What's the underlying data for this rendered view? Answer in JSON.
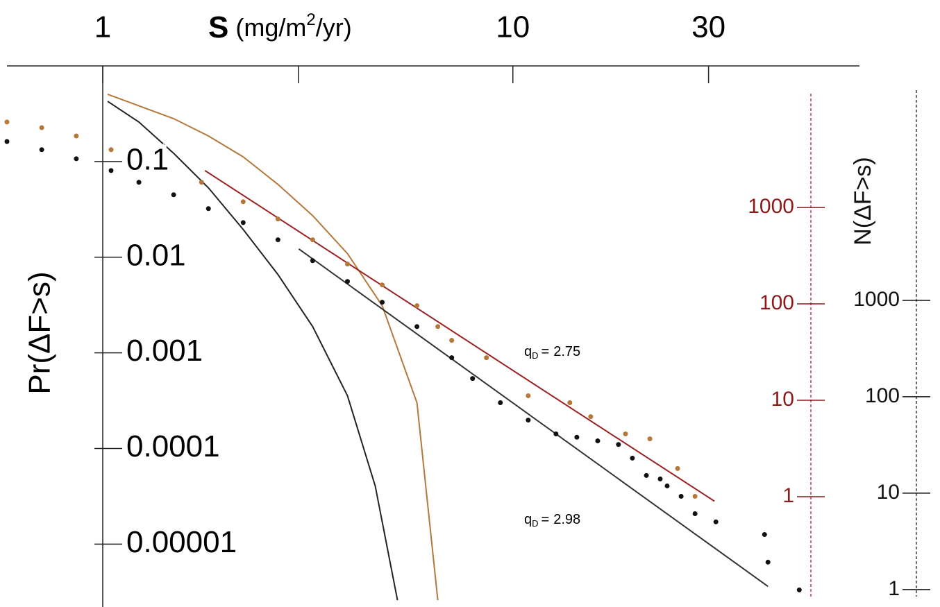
{
  "chart_data": {
    "type": "scatter",
    "x_label": {
      "symbol": "S",
      "unit_before": "(mg/m",
      "unit_sup": "2",
      "unit_after": "/yr)"
    },
    "y_label": "Pr(ΔF>s)",
    "x_axis_side": "top",
    "xlog": true,
    "ylog": true,
    "xlim": [
      0.584,
      70
    ],
    "ylim": [
      2.2e-06,
      1
    ],
    "xticks": [
      1,
      {
        "value": 3,
        "label": null
      },
      10,
      30
    ],
    "yticks": [
      0.1,
      0.01,
      0.001,
      0.0001,
      1e-05
    ],
    "series": [
      {
        "style": "dots",
        "color": "#111111",
        "x": [
          0.584,
          0.71,
          0.862,
          1.048,
          1.225,
          1.489,
          1.81,
          2.2,
          2.674,
          3.25,
          3.951,
          4.802,
          5.836,
          7.094,
          7.975,
          9.322,
          10.9,
          12.74,
          14.32,
          16.1,
          18.09,
          19.56,
          21.16,
          22.87,
          23.78,
          25.72,
          27.81,
          31.26,
          41.08,
          41.88,
          49.93
        ],
        "values": [
          0.162,
          0.133,
          0.107,
          0.0805,
          0.0607,
          0.0449,
          0.0322,
          0.023,
          0.0152,
          0.0092,
          0.00557,
          0.00338,
          0.00188,
          0.000889,
          0.000539,
          0.000301,
          0.000198,
          0.000142,
          0.000131,
          0.00012,
          0.00011,
          7.92e-05,
          5.22e-05,
          4.8e-05,
          4.06e-05,
          3.16e-05,
          2.08e-05,
          1.71e-05,
          1.26e-05,
          6.48e-06,
          3.32e-06
        ]
      },
      {
        "style": "dots",
        "color": "#b5773a",
        "x": [
          0.584,
          0.71,
          0.862,
          1.048,
          1.741,
          2.2,
          2.674,
          3.25,
          3.951,
          4.802,
          5.836,
          6.561,
          7.094,
          8.622,
          10.9,
          13.77,
          15.48,
          18.82,
          21.58,
          25.22,
          27.81
        ],
        "values": [
          0.259,
          0.226,
          0.185,
          0.133,
          0.0607,
          0.038,
          0.0251,
          0.0152,
          0.00847,
          0.00513,
          0.00311,
          0.00188,
          0.00135,
          0.000889,
          0.000356,
          0.000301,
          0.000215,
          0.000142,
          0.000126,
          6.17e-05,
          3.16e-05
        ]
      },
      {
        "style": "line",
        "color": "#222222",
        "x": [
          1.028,
          1.225,
          1.489,
          1.81,
          2.2,
          2.674,
          3.25,
          3.951,
          4.617,
          5.232
        ],
        "values": [
          0.426,
          0.259,
          0.122,
          0.0531,
          0.0195,
          0.00659,
          0.00188,
          0.000356,
          4.06e-05,
          2.59e-06
        ]
      },
      {
        "style": "line",
        "color": "#b5773a",
        "x": [
          1.028,
          1.489,
          1.81,
          2.2,
          2.674,
          3.25,
          3.951,
          4.802,
          5.836,
          6.561
        ],
        "values": [
          0.505,
          0.281,
          0.185,
          0.112,
          0.0577,
          0.0272,
          0.0109,
          0.00311,
          0.000301,
          2.59e-06
        ]
      },
      {
        "style": "line",
        "color": "#333333",
        "x": [
          3.006,
          41.88
        ],
        "values": [
          0.0122,
          3.61e-06
        ]
      },
      {
        "style": "line",
        "color": "#9b2020",
        "x": [
          1.775,
          31.01
        ],
        "values": [
          0.0805,
          2.81e-05
        ]
      }
    ],
    "annotations": [
      {
        "symbol": "q",
        "subscript": "D",
        "equals": "=",
        "value": 2.75
      },
      {
        "symbol": "q",
        "subscript": "D",
        "equals": "=",
        "value": 2.98
      }
    ],
    "right_axes": [
      {
        "color": "#8b1a1a",
        "ylim": [
          0.0718,
          29400
        ],
        "yticks": [
          1000,
          100,
          10,
          1
        ]
      },
      {
        "label": "N(ΔF>s)",
        "color": "#111111",
        "ylim": [
          0.66,
          270000
        ],
        "yticks": [
          1000,
          100,
          10,
          1
        ]
      }
    ]
  }
}
